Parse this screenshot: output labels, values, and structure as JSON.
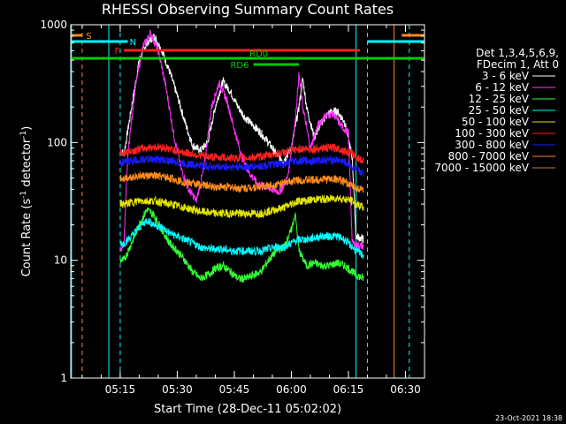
{
  "chart_data": {
    "type": "line",
    "title": "RHESSI Observing Summary Count Rates",
    "xlabel": "Start Time (28-Dec-11 05:02:02)",
    "ylabel_main": "Count Rate (s",
    "ylabel_sup1": "-1",
    "ylabel_mid": " detector",
    "ylabel_sup2": "-1",
    "ylabel_end": ")",
    "yscale": "log",
    "ylim": [
      1,
      1000
    ],
    "xlim_minutes": [
      0,
      93
    ],
    "x_ticks": [
      {
        "label": "05:15",
        "min": 13
      },
      {
        "label": "05:30",
        "min": 28
      },
      {
        "label": "05:45",
        "min": 43
      },
      {
        "label": "06:00",
        "min": 58
      },
      {
        "label": "06:15",
        "min": 73
      },
      {
        "label": "06:30",
        "min": 88
      }
    ],
    "y_ticks": [
      {
        "label": "1",
        "v": 1
      },
      {
        "label": "10",
        "v": 10
      },
      {
        "label": "100",
        "v": 100
      },
      {
        "label": "1000",
        "v": 1000
      }
    ],
    "legend_header": [
      "Det 1,3,4,5,6,9,",
      "FDecim 1, Att 0"
    ],
    "series": [
      {
        "name": "3 - 6 keV",
        "color": "#ffffff",
        "points": [
          [
            13,
            85
          ],
          [
            14,
            80
          ],
          [
            16,
            200
          ],
          [
            18,
            500
          ],
          [
            20,
            700
          ],
          [
            22,
            800
          ],
          [
            24,
            600
          ],
          [
            26,
            400
          ],
          [
            28,
            250
          ],
          [
            30,
            150
          ],
          [
            32,
            95
          ],
          [
            34,
            85
          ],
          [
            36,
            100
          ],
          [
            38,
            200
          ],
          [
            40,
            330
          ],
          [
            42,
            270
          ],
          [
            44,
            200
          ],
          [
            46,
            160
          ],
          [
            48,
            140
          ],
          [
            50,
            120
          ],
          [
            52,
            100
          ],
          [
            54,
            80
          ],
          [
            56,
            70
          ],
          [
            58,
            90
          ],
          [
            60,
            200
          ],
          [
            61,
            350
          ],
          [
            62,
            200
          ],
          [
            64,
            110
          ],
          [
            66,
            150
          ],
          [
            68,
            180
          ],
          [
            70,
            185
          ],
          [
            72,
            150
          ],
          [
            74,
            75
          ],
          [
            75,
            16
          ],
          [
            77,
            15
          ]
        ]
      },
      {
        "name": "6 - 12 keV",
        "color": "#ff33ff",
        "points": [
          [
            13,
            12
          ],
          [
            14,
            14
          ],
          [
            15,
            80
          ],
          [
            17,
            300
          ],
          [
            19,
            650
          ],
          [
            21,
            850
          ],
          [
            23,
            600
          ],
          [
            25,
            300
          ],
          [
            27,
            120
          ],
          [
            29,
            60
          ],
          [
            31,
            40
          ],
          [
            33,
            32
          ],
          [
            35,
            60
          ],
          [
            37,
            200
          ],
          [
            39,
            320
          ],
          [
            41,
            230
          ],
          [
            43,
            130
          ],
          [
            45,
            75
          ],
          [
            47,
            55
          ],
          [
            49,
            45
          ],
          [
            51,
            42
          ],
          [
            53,
            40
          ],
          [
            55,
            38
          ],
          [
            57,
            50
          ],
          [
            59,
            150
          ],
          [
            60,
            380
          ],
          [
            61,
            200
          ],
          [
            63,
            90
          ],
          [
            65,
            140
          ],
          [
            67,
            170
          ],
          [
            69,
            175
          ],
          [
            71,
            140
          ],
          [
            73,
            120
          ],
          [
            74,
            14
          ],
          [
            77,
            13
          ]
        ]
      },
      {
        "name": "12 - 25 keV",
        "color": "#33ff33",
        "points": [
          [
            13,
            10
          ],
          [
            14,
            10
          ],
          [
            16,
            14
          ],
          [
            18,
            20
          ],
          [
            20,
            27
          ],
          [
            22,
            24
          ],
          [
            24,
            18
          ],
          [
            26,
            14
          ],
          [
            28,
            12
          ],
          [
            30,
            10
          ],
          [
            32,
            8
          ],
          [
            34,
            7
          ],
          [
            36,
            7.5
          ],
          [
            38,
            8.5
          ],
          [
            40,
            9
          ],
          [
            42,
            8
          ],
          [
            44,
            7
          ],
          [
            46,
            7
          ],
          [
            48,
            7.5
          ],
          [
            50,
            8
          ],
          [
            52,
            10
          ],
          [
            54,
            12
          ],
          [
            56,
            13
          ],
          [
            58,
            18
          ],
          [
            59,
            25
          ],
          [
            60,
            12
          ],
          [
            62,
            9
          ],
          [
            64,
            9.5
          ],
          [
            66,
            9
          ],
          [
            68,
            9
          ],
          [
            70,
            9.5
          ],
          [
            72,
            9
          ],
          [
            74,
            8
          ],
          [
            75,
            7.5
          ],
          [
            77,
            7
          ]
        ]
      },
      {
        "name": "25 - 50 keV",
        "color": "#00ffff",
        "points": [
          [
            13,
            14
          ],
          [
            14,
            14
          ],
          [
            16,
            16
          ],
          [
            18,
            19
          ],
          [
            20,
            22
          ],
          [
            22,
            20
          ],
          [
            24,
            19
          ],
          [
            26,
            17
          ],
          [
            28,
            16
          ],
          [
            30,
            15
          ],
          [
            32,
            14
          ],
          [
            34,
            13
          ],
          [
            36,
            12.5
          ],
          [
            38,
            12.5
          ],
          [
            40,
            12.5
          ],
          [
            42,
            12
          ],
          [
            44,
            12
          ],
          [
            46,
            12
          ],
          [
            48,
            12
          ],
          [
            50,
            12
          ],
          [
            52,
            12.5
          ],
          [
            54,
            13
          ],
          [
            56,
            13
          ],
          [
            58,
            14
          ],
          [
            60,
            15
          ],
          [
            62,
            15
          ],
          [
            64,
            15.5
          ],
          [
            66,
            16
          ],
          [
            68,
            16
          ],
          [
            70,
            16
          ],
          [
            72,
            15
          ],
          [
            74,
            13
          ],
          [
            75,
            12
          ],
          [
            77,
            11
          ]
        ]
      },
      {
        "name": "50 - 100 keV",
        "color": "#e6e600",
        "points": [
          [
            13,
            30
          ],
          [
            14,
            30
          ],
          [
            16,
            31
          ],
          [
            18,
            32
          ],
          [
            20,
            32
          ],
          [
            22,
            32
          ],
          [
            24,
            31
          ],
          [
            26,
            30
          ],
          [
            28,
            29
          ],
          [
            30,
            28
          ],
          [
            32,
            27
          ],
          [
            34,
            26
          ],
          [
            36,
            25.5
          ],
          [
            38,
            25
          ],
          [
            40,
            25
          ],
          [
            42,
            25
          ],
          [
            44,
            25
          ],
          [
            46,
            25
          ],
          [
            48,
            25
          ],
          [
            50,
            25
          ],
          [
            52,
            26
          ],
          [
            54,
            27
          ],
          [
            56,
            28
          ],
          [
            58,
            30
          ],
          [
            60,
            32
          ],
          [
            62,
            32
          ],
          [
            64,
            33
          ],
          [
            66,
            33
          ],
          [
            68,
            33
          ],
          [
            70,
            34
          ],
          [
            72,
            33
          ],
          [
            74,
            32
          ],
          [
            75,
            30
          ],
          [
            77,
            28
          ]
        ]
      },
      {
        "name": "100 - 300 keV",
        "color": "#ff2020",
        "points": [
          [
            13,
            82
          ],
          [
            14,
            82
          ],
          [
            16,
            85
          ],
          [
            18,
            88
          ],
          [
            20,
            90
          ],
          [
            22,
            92
          ],
          [
            24,
            91
          ],
          [
            26,
            88
          ],
          [
            28,
            85
          ],
          [
            30,
            82
          ],
          [
            32,
            80
          ],
          [
            34,
            78
          ],
          [
            36,
            76
          ],
          [
            38,
            75
          ],
          [
            40,
            75
          ],
          [
            42,
            74
          ],
          [
            44,
            74
          ],
          [
            46,
            74
          ],
          [
            48,
            75
          ],
          [
            50,
            76
          ],
          [
            52,
            78
          ],
          [
            54,
            80
          ],
          [
            56,
            82
          ],
          [
            58,
            85
          ],
          [
            60,
            88
          ],
          [
            62,
            88
          ],
          [
            64,
            88
          ],
          [
            66,
            90
          ],
          [
            68,
            90
          ],
          [
            70,
            90
          ],
          [
            72,
            85
          ],
          [
            74,
            80
          ],
          [
            75,
            75
          ],
          [
            77,
            70
          ]
        ]
      },
      {
        "name": "300 - 800 keV",
        "color": "#1a1aff",
        "points": [
          [
            13,
            68
          ],
          [
            14,
            68
          ],
          [
            16,
            70
          ],
          [
            18,
            71
          ],
          [
            20,
            72
          ],
          [
            22,
            72
          ],
          [
            24,
            71
          ],
          [
            26,
            70
          ],
          [
            28,
            68
          ],
          [
            30,
            66
          ],
          [
            32,
            65
          ],
          [
            34,
            64
          ],
          [
            36,
            63
          ],
          [
            38,
            62
          ],
          [
            40,
            62
          ],
          [
            42,
            62
          ],
          [
            44,
            62
          ],
          [
            46,
            62
          ],
          [
            48,
            62
          ],
          [
            50,
            63
          ],
          [
            52,
            64
          ],
          [
            54,
            65
          ],
          [
            56,
            66
          ],
          [
            58,
            68
          ],
          [
            60,
            70
          ],
          [
            62,
            70
          ],
          [
            64,
            70
          ],
          [
            66,
            71
          ],
          [
            68,
            71
          ],
          [
            70,
            71
          ],
          [
            72,
            68
          ],
          [
            74,
            62
          ],
          [
            75,
            58
          ],
          [
            77,
            55
          ]
        ]
      },
      {
        "name": "800 - 7000 keV",
        "color": "#ff8c1a",
        "points": [
          [
            13,
            50
          ],
          [
            14,
            50
          ],
          [
            16,
            51
          ],
          [
            18,
            52
          ],
          [
            20,
            52
          ],
          [
            22,
            52
          ],
          [
            24,
            51
          ],
          [
            26,
            50
          ],
          [
            28,
            48
          ],
          [
            30,
            46
          ],
          [
            32,
            45
          ],
          [
            34,
            44
          ],
          [
            36,
            43
          ],
          [
            38,
            42
          ],
          [
            40,
            42
          ],
          [
            42,
            42
          ],
          [
            44,
            41
          ],
          [
            46,
            41
          ],
          [
            48,
            42
          ],
          [
            50,
            42
          ],
          [
            52,
            43
          ],
          [
            54,
            44
          ],
          [
            56,
            45
          ],
          [
            58,
            47
          ],
          [
            60,
            48
          ],
          [
            62,
            48
          ],
          [
            64,
            48
          ],
          [
            66,
            49
          ],
          [
            68,
            49
          ],
          [
            70,
            49
          ],
          [
            72,
            46
          ],
          [
            74,
            43
          ],
          [
            75,
            41
          ],
          [
            77,
            40
          ]
        ]
      },
      {
        "name": "7000 - 15000 keV",
        "color": "#c8821e",
        "points": []
      }
    ],
    "state_bars": [
      {
        "label": "S",
        "color": "#ff8c1a",
        "x0": 0,
        "x1": 3,
        "y": 40,
        "label_at": 4
      },
      {
        "label": "S",
        "color": "#ff8c1a",
        "x0": 87,
        "x1": 93,
        "y": 40,
        "label_at": null
      },
      {
        "label": "N",
        "color": "#00ffff",
        "x0": 0,
        "x1": 15,
        "y": 47,
        "label_at": 15.5
      },
      {
        "label": "N",
        "color": "#00ffff",
        "x0": 78,
        "x1": 93,
        "y": 47,
        "label_at": null
      },
      {
        "label": "F",
        "color": "#ff2020",
        "x0": 14,
        "x1": 76,
        "y": 57,
        "label_at": 11.5
      },
      {
        "label": "RD0",
        "color": "#00cc00",
        "x0": 0,
        "x1": 93,
        "y": 66,
        "label_at": 47
      },
      {
        "label": "RD6",
        "color": "#00cc00",
        "x0": 48,
        "x1": 60,
        "y": 73,
        "label_at": 42
      }
    ],
    "vlines": [
      {
        "min": 0.2,
        "color": "#00ffff",
        "style": "solid"
      },
      {
        "min": 3,
        "color": "#ff8c1a",
        "style": "dash"
      },
      {
        "min": 10,
        "color": "#00ffff",
        "style": "solid"
      },
      {
        "min": 13,
        "color": "#00ffff",
        "style": "dash"
      },
      {
        "min": 75,
        "color": "#00ffff",
        "style": "solid"
      },
      {
        "min": 78,
        "color": "#00ffff",
        "style": "dash"
      },
      {
        "min": 85,
        "color": "#ff8c1a",
        "style": "solid"
      },
      {
        "min": 89,
        "color": "#00ffff",
        "style": "dash"
      }
    ],
    "footer": "23-Oct-2021 18:38"
  }
}
